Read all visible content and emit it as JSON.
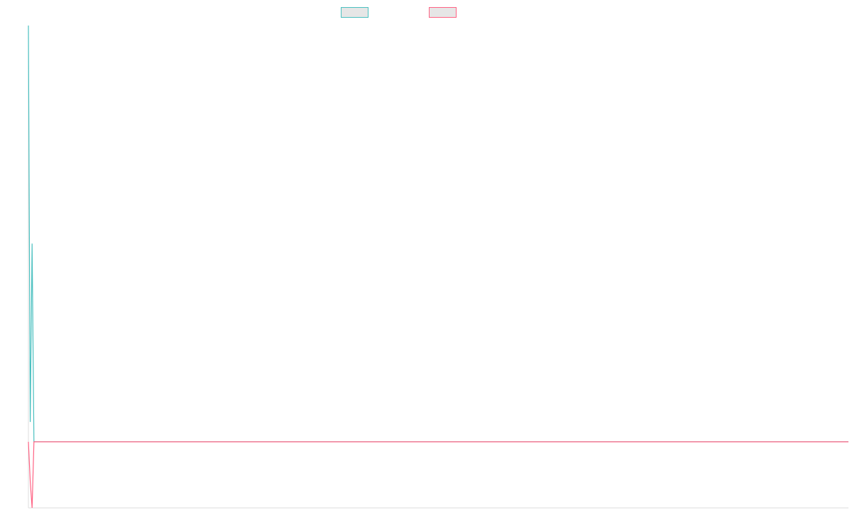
{
  "chart_data": {
    "type": "line",
    "title": "",
    "xlabel": "",
    "ylabel": "",
    "grid": false,
    "legend_position": "top-center",
    "x_max": 499,
    "ylim": [
      -1,
      6.3
    ],
    "series": [
      {
        "name": "",
        "color": "#4bc0c0",
        "x": [
          0,
          1,
          2,
          3,
          499
        ],
        "values": [
          6.3,
          0.3,
          3.0,
          0.0,
          0.0
        ]
      },
      {
        "name": "",
        "color": "#ff6384",
        "x": [
          0,
          1,
          2,
          3,
          499
        ],
        "values": [
          0.0,
          -0.6,
          -1.0,
          0.0,
          0.0
        ]
      }
    ]
  }
}
